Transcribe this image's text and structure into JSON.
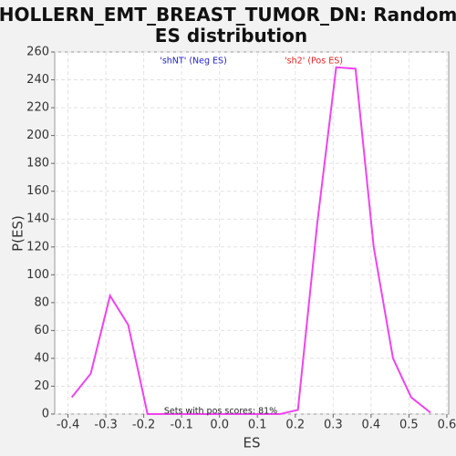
{
  "chart_data": {
    "type": "line",
    "title": "HOLLERN_EMT_BREAST_TUMOR_DN: Random ES distribution",
    "xlabel": "ES",
    "ylabel": "P(ES)",
    "annotations": [
      "'shNT' (Neg ES)",
      "'sh2' (Pos ES)",
      "Sets with pos scores: 81%"
    ],
    "annotation_colors": [
      "#2222cc",
      "#dd2222",
      "#222222"
    ],
    "x": [
      -0.39,
      -0.34,
      -0.289,
      -0.241,
      -0.19,
      -0.14,
      -0.09,
      -0.04,
      0.01,
      0.06,
      0.11,
      0.16,
      0.207,
      0.258,
      0.308,
      0.359,
      0.407,
      0.458,
      0.506,
      0.557
    ],
    "series": [
      {
        "name": "P(ES)",
        "color": "#ee44ee",
        "values": [
          12,
          29,
          85,
          64,
          0,
          0,
          0,
          0,
          0,
          0,
          0,
          0,
          3,
          137,
          249,
          248,
          120,
          40,
          12,
          1
        ]
      }
    ],
    "xlim": [
      -0.435,
      0.605
    ],
    "ylim": [
      0,
      260
    ],
    "xticks": [
      -0.4,
      -0.3,
      -0.2,
      -0.1,
      {
        "value": 0,
        "label": "0.0"
      },
      0.1,
      0.2,
      0.3,
      0.4,
      0.5,
      0.6
    ],
    "yticks": [
      0,
      20,
      40,
      60,
      80,
      100,
      120,
      140,
      160,
      180,
      200,
      220,
      240,
      260
    ],
    "grid": true
  }
}
